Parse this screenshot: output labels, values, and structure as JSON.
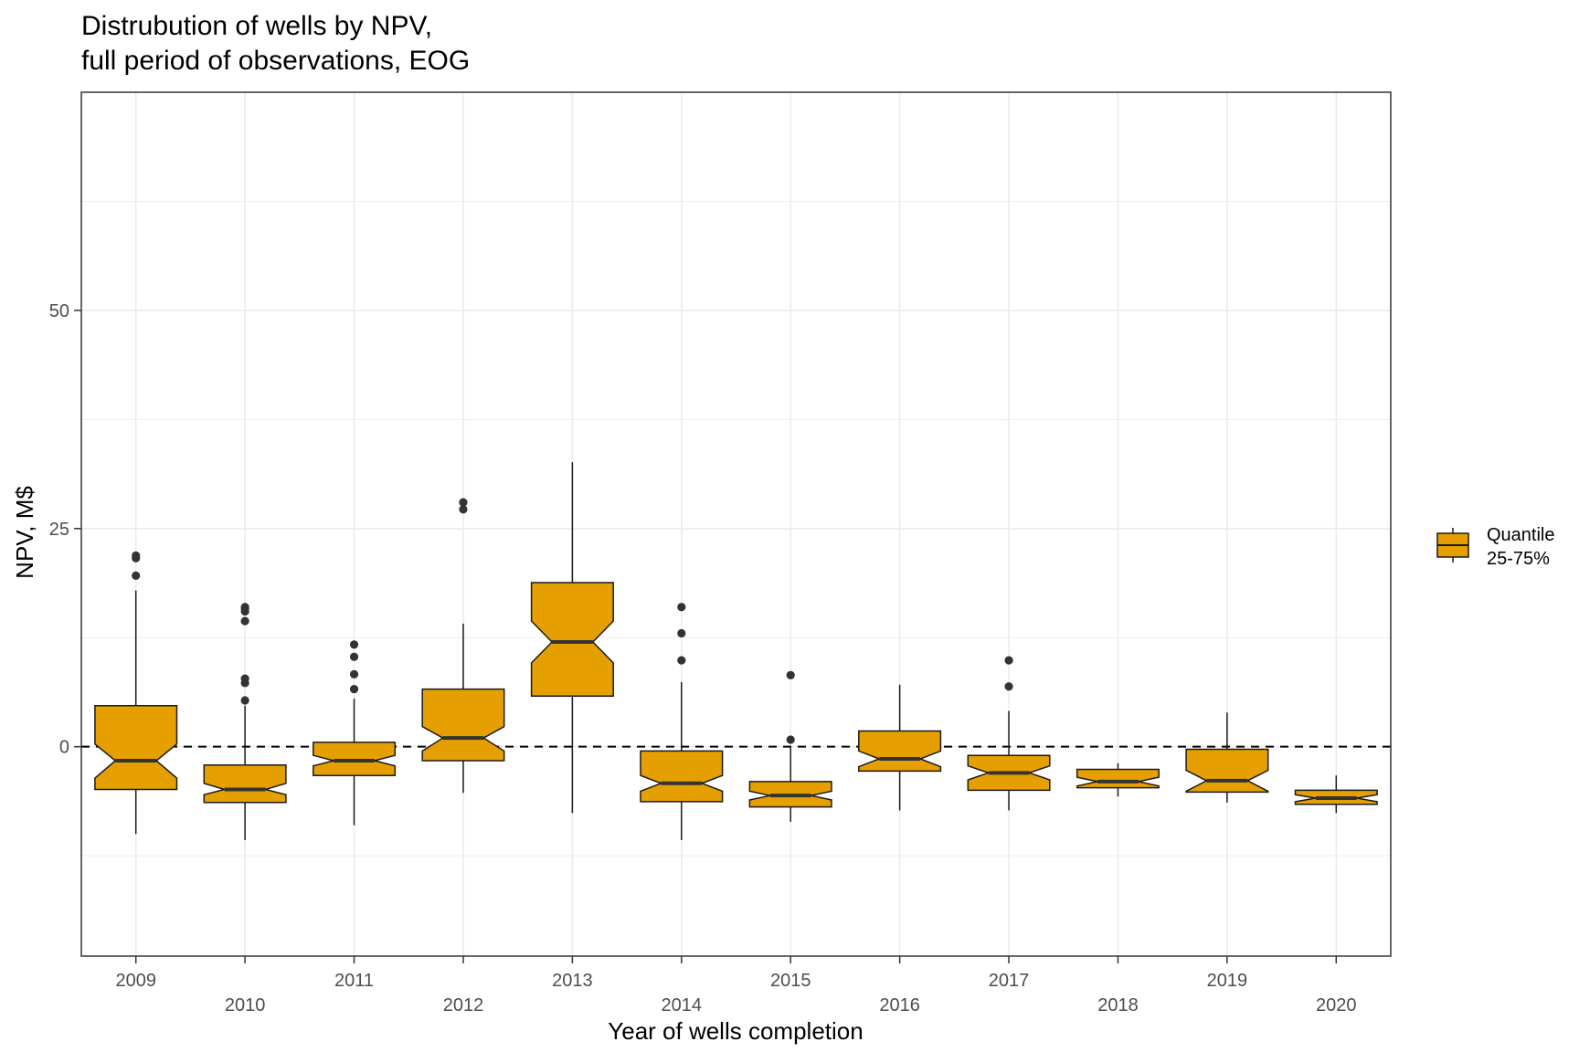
{
  "chart_data": {
    "type": "boxplot",
    "title_lines": [
      "Distrubution of wells by NPV,",
      "full period of observations, EOG"
    ],
    "xlabel": "Year of wells completion",
    "ylabel": "NPV, M$",
    "ylim": [
      -24,
      75
    ],
    "yticks": [
      0,
      25,
      50
    ],
    "reference_line": {
      "y": 0,
      "style": "dashed"
    },
    "notched": true,
    "grid": true,
    "box_color": "#E69F00",
    "outline_color": "#1a1a1a",
    "outlier_color": "#333333",
    "legend": {
      "position": "right",
      "lines": [
        "Quantile",
        "25-75%"
      ]
    },
    "categories": [
      "2009",
      "2010",
      "2011",
      "2012",
      "2013",
      "2014",
      "2015",
      "2016",
      "2017",
      "2018",
      "2019",
      "2020"
    ],
    "boxes": [
      {
        "category": "2009",
        "min": -10.0,
        "q1": -4.9,
        "median": -1.6,
        "q3": 4.7,
        "max": 17.9,
        "notch_low": -3.6,
        "notch_high": 0.3,
        "outliers": [
          19.6,
          21.6,
          21.9
        ]
      },
      {
        "category": "2010",
        "min": -10.7,
        "q1": -6.4,
        "median": -4.9,
        "q3": -2.1,
        "max": 4.7,
        "notch_low": -5.5,
        "notch_high": -4.2,
        "outliers": [
          5.3,
          7.3,
          7.8,
          14.4,
          15.5,
          15.8,
          16.0
        ]
      },
      {
        "category": "2011",
        "min": -9.0,
        "q1": -3.3,
        "median": -1.6,
        "q3": 0.5,
        "max": 5.5,
        "notch_low": -2.2,
        "notch_high": -1.0,
        "outliers": [
          6.6,
          8.3,
          10.3,
          11.7
        ]
      },
      {
        "category": "2012",
        "min": -5.3,
        "q1": -1.6,
        "median": 1.0,
        "q3": 6.6,
        "max": 14.1,
        "notch_low": -0.5,
        "notch_high": 2.3,
        "outliers": [
          27.2,
          28.0
        ]
      },
      {
        "category": "2013",
        "min": -7.6,
        "q1": 5.8,
        "median": 12.0,
        "q3": 18.8,
        "max": 32.6,
        "notch_low": 9.6,
        "notch_high": 14.4,
        "outliers": []
      },
      {
        "category": "2014",
        "min": -10.7,
        "q1": -6.3,
        "median": -4.2,
        "q3": -0.5,
        "max": 7.4,
        "notch_low": -5.1,
        "notch_high": -3.3,
        "outliers": [
          9.9,
          13.0,
          16.0
        ]
      },
      {
        "category": "2015",
        "min": -8.6,
        "q1": -6.9,
        "median": -5.6,
        "q3": -4.0,
        "max": -0.1,
        "notch_low": -6.1,
        "notch_high": -5.1,
        "outliers": [
          0.8,
          8.2
        ]
      },
      {
        "category": "2016",
        "min": -7.3,
        "q1": -2.8,
        "median": -1.4,
        "q3": 1.8,
        "max": 7.1,
        "notch_low": -2.3,
        "notch_high": -0.5,
        "outliers": []
      },
      {
        "category": "2017",
        "min": -7.3,
        "q1": -5.0,
        "median": -3.0,
        "q3": -1.0,
        "max": 4.1,
        "notch_low": -3.8,
        "notch_high": -2.2,
        "outliers": [
          6.9,
          9.9
        ]
      },
      {
        "category": "2018",
        "min": -5.7,
        "q1": -4.7,
        "median": -4.0,
        "q3": -2.6,
        "max": -1.9,
        "notch_low": -4.5,
        "notch_high": -3.5,
        "outliers": []
      },
      {
        "category": "2019",
        "min": -6.4,
        "q1": -5.2,
        "median": -3.9,
        "q3": -0.3,
        "max": 3.9,
        "notch_low": -5.1,
        "notch_high": -2.7,
        "outliers": []
      },
      {
        "category": "2020",
        "min": -7.6,
        "q1": -6.6,
        "median": -5.9,
        "q3": -5.0,
        "max": -3.3,
        "notch_low": -6.3,
        "notch_high": -5.5,
        "outliers": []
      }
    ]
  }
}
